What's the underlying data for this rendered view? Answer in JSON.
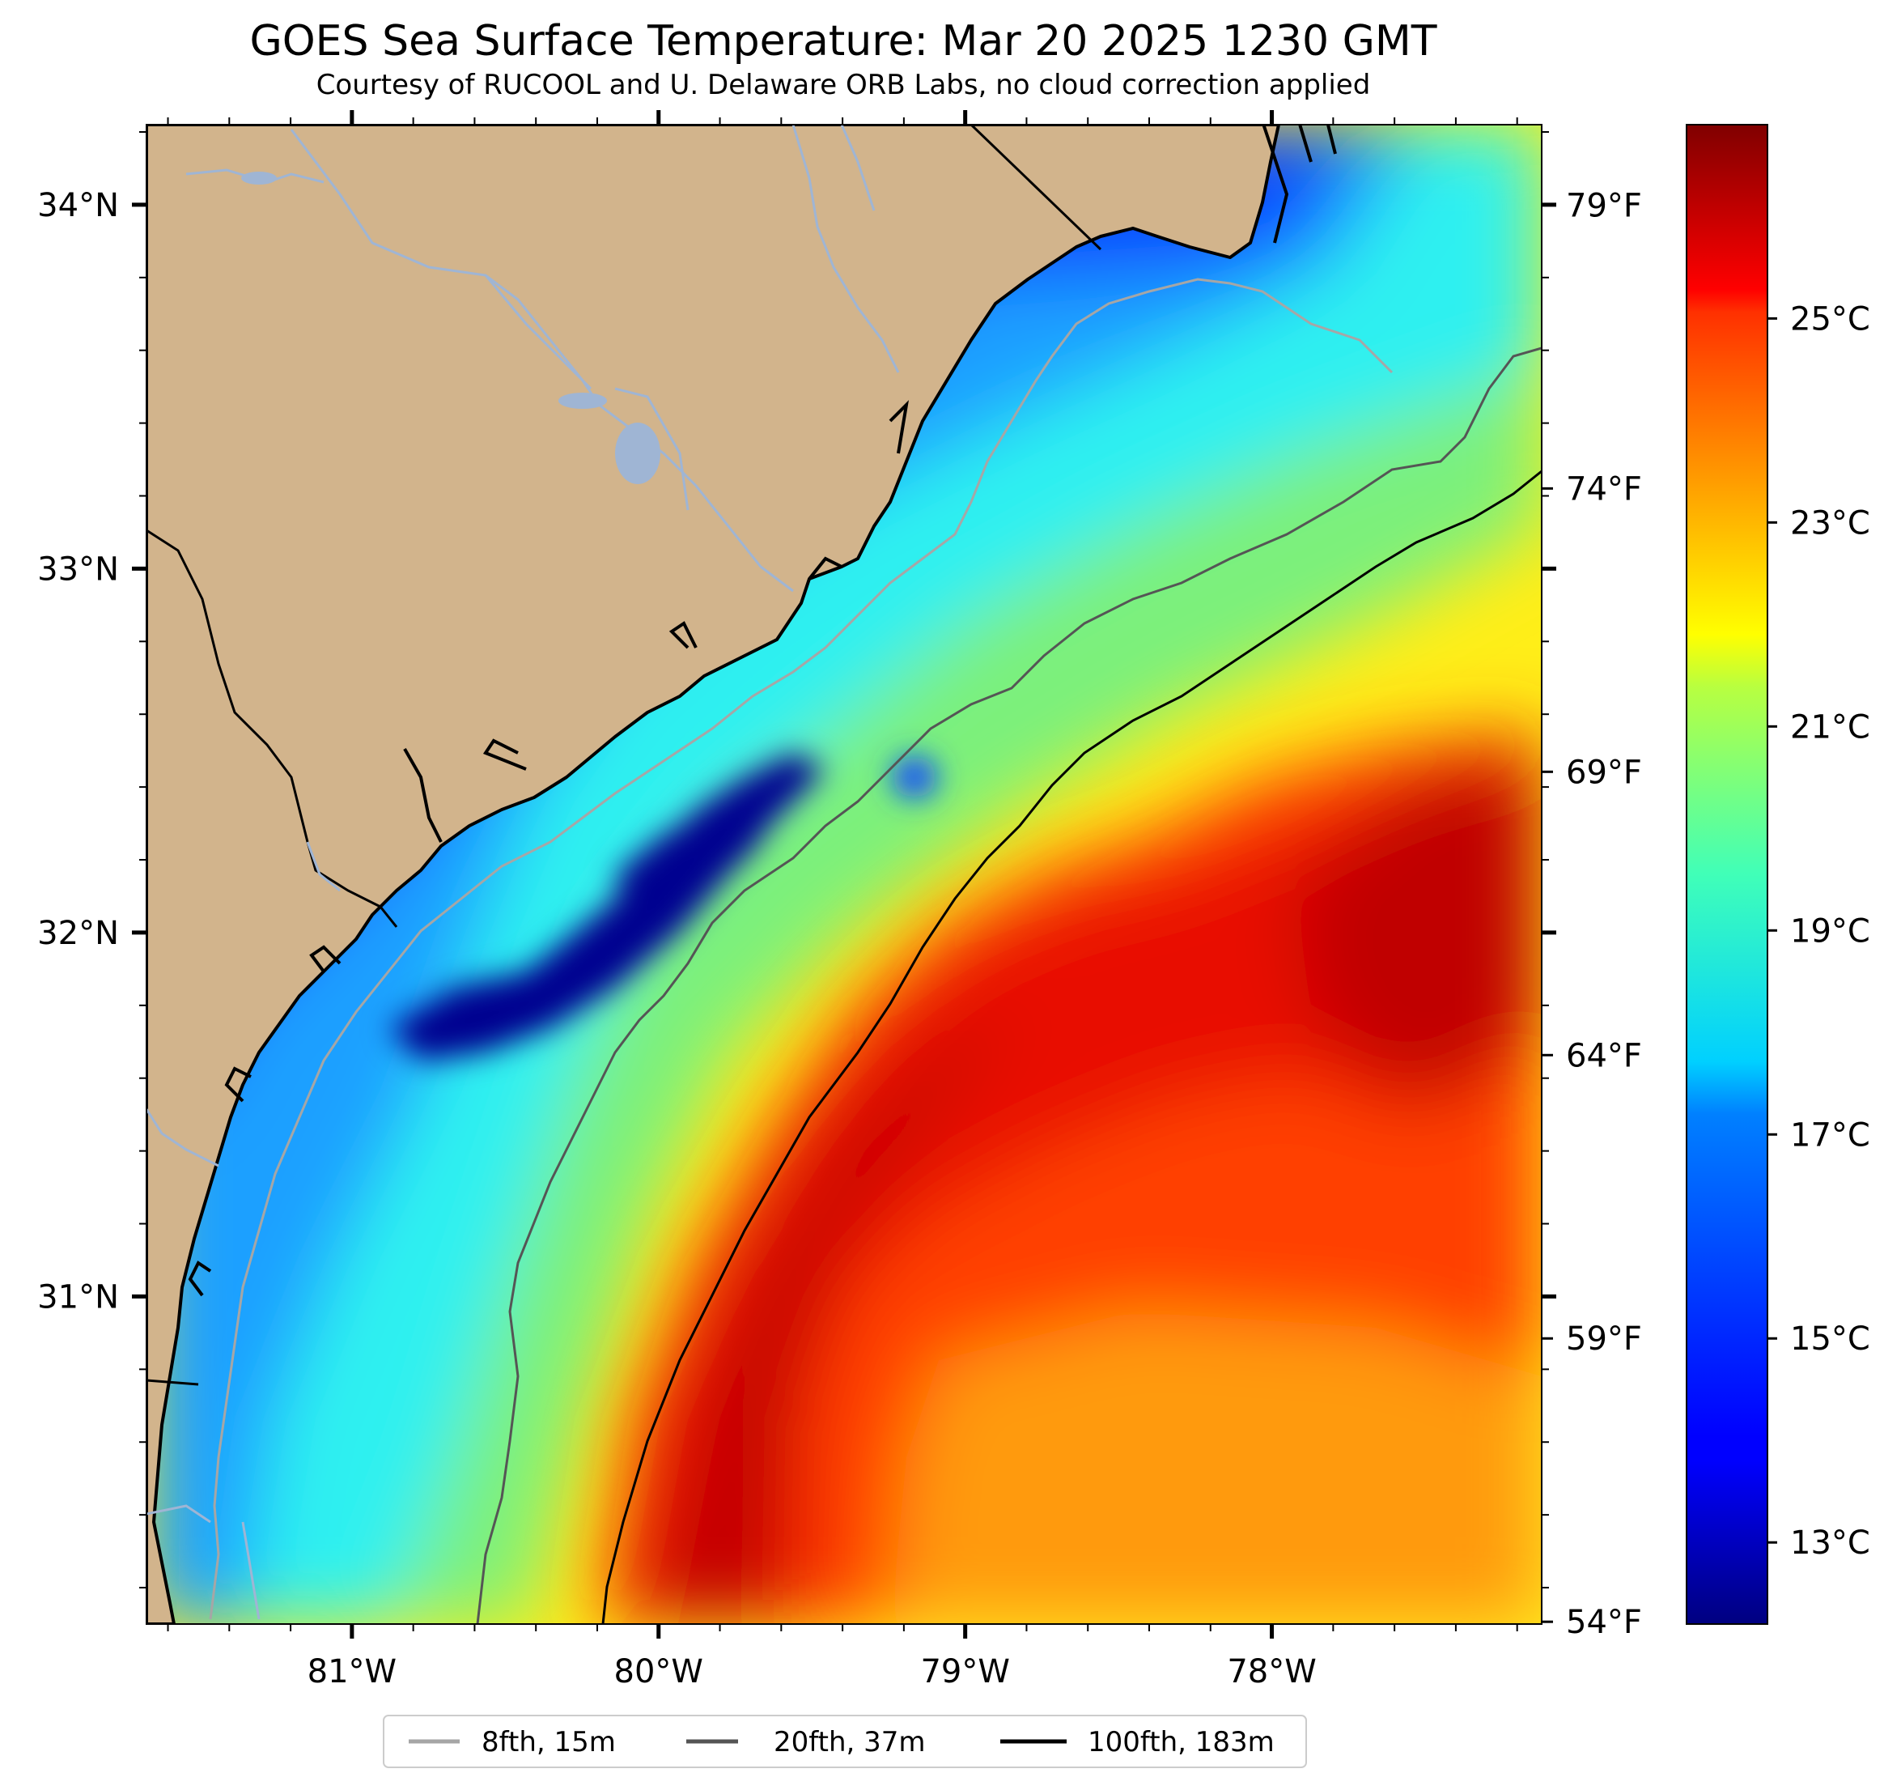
{
  "title": "GOES Sea Surface Temperature: Mar 20 2025 1230 GMT",
  "subtitle": "Courtesy of RUCOOL and U. Delaware ORB Labs, no cloud correction applied",
  "map": {
    "lon_range": [
      -81.67,
      -77.12
    ],
    "lat_range": [
      30.1,
      34.22
    ],
    "lat_ticks": [
      {
        "value": 34,
        "label": "34°N"
      },
      {
        "value": 33,
        "label": "33°N"
      },
      {
        "value": 32,
        "label": "32°N"
      },
      {
        "value": 31,
        "label": "31°N"
      }
    ],
    "lon_ticks": [
      {
        "value": -81,
        "label": "81°W"
      },
      {
        "value": -80,
        "label": "80°W"
      },
      {
        "value": -79,
        "label": "79°W"
      },
      {
        "value": -78,
        "label": "78°W"
      }
    ],
    "fahrenheit_ticks": [
      {
        "value": 79,
        "label": "79°F"
      },
      {
        "value": 74,
        "label": "74°F"
      },
      {
        "value": 69,
        "label": "69°F"
      },
      {
        "value": 64,
        "label": "64°F"
      },
      {
        "value": 59,
        "label": "59°F"
      },
      {
        "value": 54,
        "label": "54°F"
      }
    ]
  },
  "colorbar": {
    "range_c": [
      12.2,
      26.9
    ],
    "ticks": [
      {
        "value": 25,
        "label": "25°C"
      },
      {
        "value": 23,
        "label": "23°C"
      },
      {
        "value": 21,
        "label": "21°C"
      },
      {
        "value": 19,
        "label": "19°C"
      },
      {
        "value": 17,
        "label": "17°C"
      },
      {
        "value": 15,
        "label": "15°C"
      },
      {
        "value": 13,
        "label": "13°C"
      }
    ],
    "colormap": "jet"
  },
  "legend": [
    {
      "label": "8fth, 15m",
      "color": "#a6a6a6"
    },
    {
      "label": "20fth, 37m",
      "color": "#555555"
    },
    {
      "label": "100fth, 183m",
      "color": "#000000"
    }
  ],
  "colors": {
    "land": "#d2b48c",
    "river": "#9fb5d4",
    "coast": "#000000",
    "very_cold": "#000090",
    "cold": "#0a46ff",
    "cool": "#1ea0ff",
    "mild": "#2df0f0",
    "green": "#7cf07c",
    "yellow": "#ffee18",
    "orange": "#ff9a0a",
    "red_orange": "#ff4000",
    "red": "#e81000",
    "dark_red": "#c00000"
  }
}
